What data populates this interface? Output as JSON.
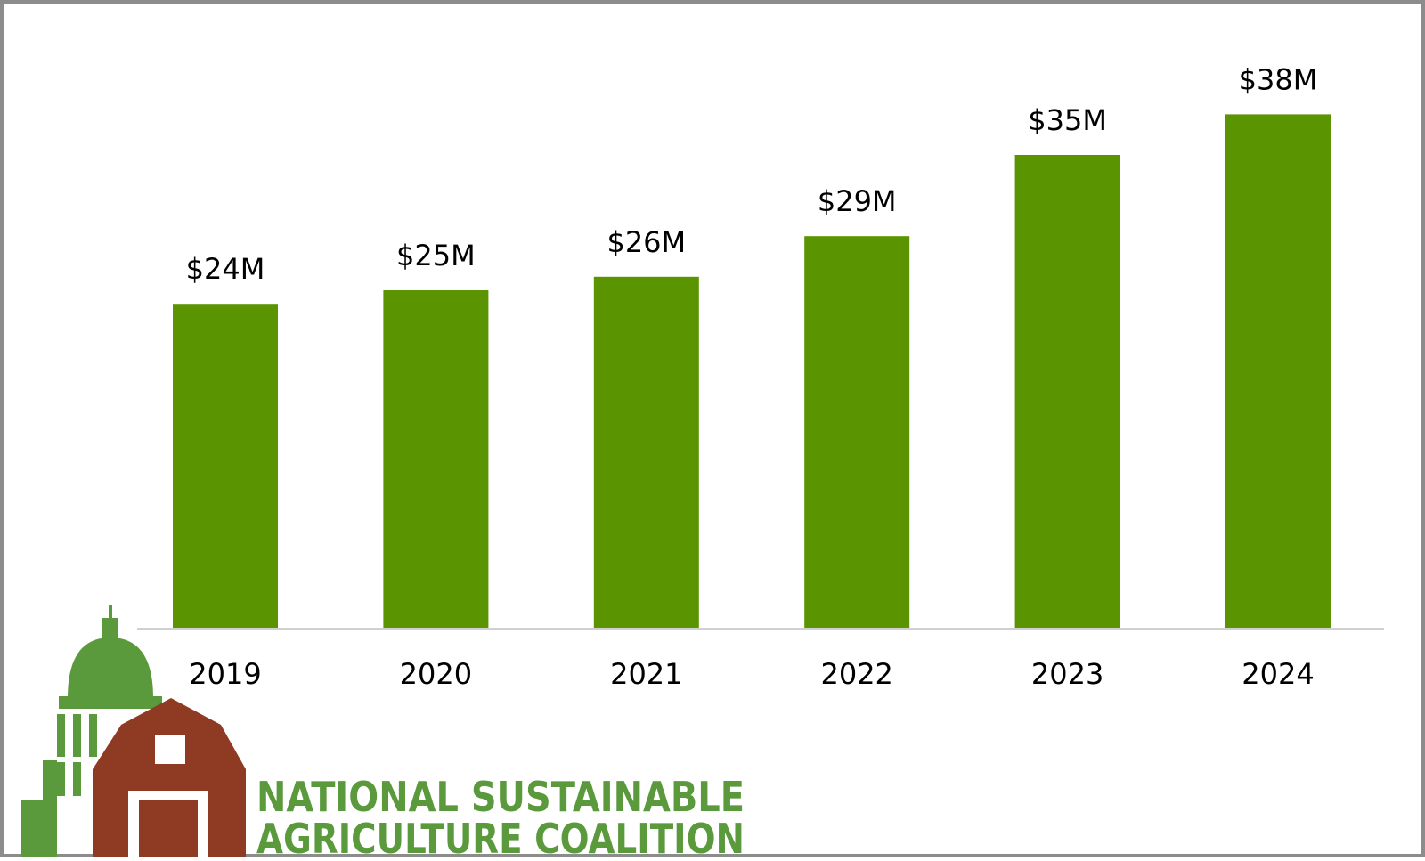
{
  "chart_data": {
    "type": "bar",
    "categories": [
      "2019",
      "2020",
      "2021",
      "2022",
      "2023",
      "2024"
    ],
    "values": [
      24,
      25,
      26,
      29,
      35,
      38
    ],
    "data_labels": [
      "$24M",
      "$25M",
      "$26M",
      "$29M",
      "$35M",
      "$38M"
    ],
    "title": "",
    "xlabel": "",
    "ylabel": "",
    "ylim": [
      0,
      40
    ],
    "grid": false,
    "legend": "none",
    "bar_color": "#5a9400"
  },
  "logo": {
    "line1": "NATIONAL SUSTAINABLE",
    "line2": "AGRICULTURE COALITION",
    "text_color": "#5a9a3c",
    "barn_color": "#8f3a22",
    "dome_color": "#5a9a3c"
  }
}
